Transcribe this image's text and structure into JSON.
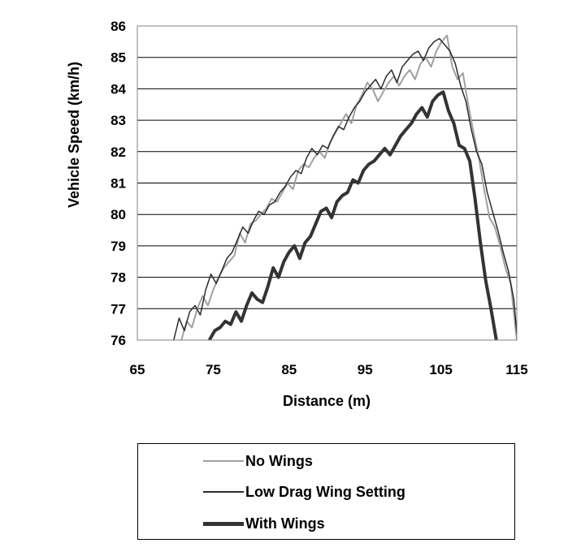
{
  "chart_data": {
    "type": "line",
    "xlabel": "Distance (m)",
    "ylabel": "Vehicle Speed (km/h)",
    "xlim": [
      65,
      115
    ],
    "ylim": [
      76,
      86
    ],
    "xticks": [
      65,
      75,
      85,
      95,
      105,
      115
    ],
    "yticks": [
      76,
      77,
      78,
      79,
      80,
      81,
      82,
      83,
      84,
      85,
      86
    ],
    "grid": "horizontal",
    "legend_position": "bottom",
    "series": [
      {
        "name": "No Wings",
        "color": "#a0a0a0",
        "width": 2,
        "points": [
          [
            70.8,
            76.0
          ],
          [
            71.5,
            76.6
          ],
          [
            72.2,
            76.4
          ],
          [
            72.9,
            77.0
          ],
          [
            73.6,
            77.4
          ],
          [
            74.3,
            77.1
          ],
          [
            75.0,
            77.6
          ],
          [
            75.7,
            78.0
          ],
          [
            76.4,
            78.3
          ],
          [
            77.1,
            78.5
          ],
          [
            77.8,
            78.7
          ],
          [
            78.5,
            79.4
          ],
          [
            79.2,
            79.1
          ],
          [
            79.9,
            79.7
          ],
          [
            80.6,
            79.8
          ],
          [
            81.3,
            80.0
          ],
          [
            82.0,
            80.2
          ],
          [
            82.7,
            80.5
          ],
          [
            83.4,
            80.4
          ],
          [
            84.1,
            80.7
          ],
          [
            84.8,
            81.0
          ],
          [
            85.5,
            80.8
          ],
          [
            86.2,
            81.4
          ],
          [
            86.9,
            81.6
          ],
          [
            87.6,
            81.5
          ],
          [
            88.3,
            81.8
          ],
          [
            89.0,
            82.0
          ],
          [
            89.7,
            81.8
          ],
          [
            90.4,
            82.3
          ],
          [
            91.1,
            82.6
          ],
          [
            91.8,
            82.9
          ],
          [
            92.5,
            83.2
          ],
          [
            93.2,
            82.9
          ],
          [
            93.9,
            83.5
          ],
          [
            94.6,
            83.8
          ],
          [
            95.3,
            84.2
          ],
          [
            96.0,
            84.0
          ],
          [
            96.7,
            83.6
          ],
          [
            97.4,
            83.9
          ],
          [
            98.1,
            84.2
          ],
          [
            98.8,
            84.4
          ],
          [
            99.5,
            84.1
          ],
          [
            100.2,
            84.4
          ],
          [
            100.9,
            84.6
          ],
          [
            101.6,
            84.3
          ],
          [
            102.3,
            84.8
          ],
          [
            103.0,
            85.0
          ],
          [
            103.7,
            84.7
          ],
          [
            104.4,
            85.2
          ],
          [
            105.1,
            85.5
          ],
          [
            105.8,
            85.7
          ],
          [
            106.5,
            84.7
          ],
          [
            107.2,
            84.3
          ],
          [
            107.9,
            84.5
          ],
          [
            108.6,
            83.5
          ],
          [
            109.3,
            82.6
          ],
          [
            110.0,
            81.8
          ],
          [
            110.7,
            80.8
          ],
          [
            111.4,
            79.9
          ],
          [
            112.1,
            79.6
          ],
          [
            112.8,
            79.0
          ],
          [
            113.5,
            78.3
          ],
          [
            114.2,
            77.8
          ],
          [
            115.0,
            76.0
          ]
        ]
      },
      {
        "name": "Low Drag Wing Setting",
        "color": "#2b2b2b",
        "width": 1.5,
        "points": [
          [
            69.8,
            76.0
          ],
          [
            70.5,
            76.7
          ],
          [
            71.2,
            76.3
          ],
          [
            71.9,
            76.9
          ],
          [
            72.6,
            77.1
          ],
          [
            73.3,
            76.8
          ],
          [
            74.0,
            77.6
          ],
          [
            74.7,
            78.1
          ],
          [
            75.4,
            77.8
          ],
          [
            76.1,
            78.2
          ],
          [
            76.8,
            78.6
          ],
          [
            77.5,
            78.8
          ],
          [
            78.2,
            79.2
          ],
          [
            78.9,
            79.6
          ],
          [
            79.6,
            79.4
          ],
          [
            80.3,
            79.8
          ],
          [
            81.0,
            80.1
          ],
          [
            81.7,
            80.0
          ],
          [
            82.4,
            80.3
          ],
          [
            83.1,
            80.4
          ],
          [
            83.8,
            80.7
          ],
          [
            84.5,
            80.9
          ],
          [
            85.2,
            81.2
          ],
          [
            85.9,
            81.4
          ],
          [
            86.6,
            81.3
          ],
          [
            87.3,
            81.8
          ],
          [
            88.0,
            82.1
          ],
          [
            88.7,
            81.9
          ],
          [
            89.4,
            82.2
          ],
          [
            90.1,
            82.1
          ],
          [
            90.8,
            82.5
          ],
          [
            91.5,
            82.8
          ],
          [
            92.2,
            82.7
          ],
          [
            92.9,
            83.1
          ],
          [
            93.6,
            83.4
          ],
          [
            94.3,
            83.6
          ],
          [
            95.0,
            83.9
          ],
          [
            95.7,
            84.1
          ],
          [
            96.4,
            84.3
          ],
          [
            97.1,
            84.0
          ],
          [
            97.8,
            84.4
          ],
          [
            98.5,
            84.6
          ],
          [
            99.2,
            84.2
          ],
          [
            99.9,
            84.7
          ],
          [
            100.6,
            84.9
          ],
          [
            101.3,
            85.1
          ],
          [
            102.0,
            85.2
          ],
          [
            102.7,
            84.9
          ],
          [
            103.4,
            85.3
          ],
          [
            104.1,
            85.5
          ],
          [
            104.8,
            85.6
          ],
          [
            105.5,
            85.4
          ],
          [
            106.2,
            85.2
          ],
          [
            106.9,
            84.8
          ],
          [
            107.6,
            84.1
          ],
          [
            108.3,
            83.6
          ],
          [
            109.0,
            82.7
          ],
          [
            109.7,
            82.0
          ],
          [
            110.4,
            81.6
          ],
          [
            111.1,
            80.7
          ],
          [
            111.8,
            80.1
          ],
          [
            112.5,
            79.5
          ],
          [
            113.2,
            78.8
          ],
          [
            113.9,
            78.2
          ],
          [
            114.6,
            77.3
          ],
          [
            115.0,
            76.2
          ]
        ]
      },
      {
        "name": "With Wings",
        "color": "#333333",
        "width": 4,
        "points": [
          [
            74.5,
            76.0
          ],
          [
            75.2,
            76.3
          ],
          [
            75.9,
            76.4
          ],
          [
            76.6,
            76.6
          ],
          [
            77.3,
            76.5
          ],
          [
            78.0,
            76.9
          ],
          [
            78.7,
            76.6
          ],
          [
            79.4,
            77.1
          ],
          [
            80.1,
            77.5
          ],
          [
            80.8,
            77.3
          ],
          [
            81.5,
            77.2
          ],
          [
            82.2,
            77.7
          ],
          [
            82.9,
            78.3
          ],
          [
            83.6,
            78.0
          ],
          [
            84.3,
            78.5
          ],
          [
            85.0,
            78.8
          ],
          [
            85.7,
            79.0
          ],
          [
            86.4,
            78.6
          ],
          [
            87.1,
            79.1
          ],
          [
            87.8,
            79.3
          ],
          [
            88.5,
            79.7
          ],
          [
            89.2,
            80.1
          ],
          [
            89.9,
            80.2
          ],
          [
            90.6,
            79.9
          ],
          [
            91.3,
            80.4
          ],
          [
            92.0,
            80.6
          ],
          [
            92.7,
            80.7
          ],
          [
            93.4,
            81.1
          ],
          [
            94.1,
            81.0
          ],
          [
            94.8,
            81.4
          ],
          [
            95.5,
            81.6
          ],
          [
            96.2,
            81.7
          ],
          [
            96.9,
            81.9
          ],
          [
            97.6,
            82.1
          ],
          [
            98.3,
            81.9
          ],
          [
            99.0,
            82.2
          ],
          [
            99.7,
            82.5
          ],
          [
            100.4,
            82.7
          ],
          [
            101.1,
            82.9
          ],
          [
            101.8,
            83.2
          ],
          [
            102.5,
            83.4
          ],
          [
            103.2,
            83.1
          ],
          [
            103.9,
            83.6
          ],
          [
            104.6,
            83.8
          ],
          [
            105.3,
            83.9
          ],
          [
            106.0,
            83.3
          ],
          [
            106.7,
            82.9
          ],
          [
            107.4,
            82.2
          ],
          [
            108.1,
            82.1
          ],
          [
            108.8,
            81.7
          ],
          [
            109.5,
            80.5
          ],
          [
            110.2,
            79.1
          ],
          [
            110.9,
            77.9
          ],
          [
            111.6,
            77.0
          ],
          [
            112.3,
            76.0
          ]
        ]
      }
    ]
  }
}
